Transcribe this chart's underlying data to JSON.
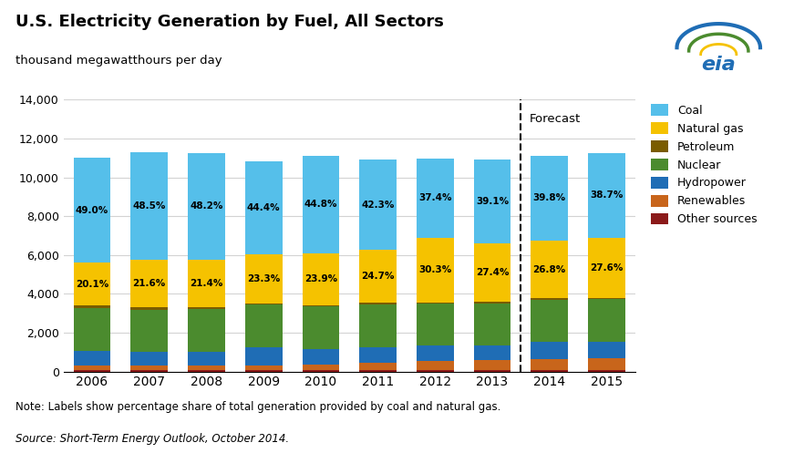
{
  "years": [
    "2006",
    "2007",
    "2008",
    "2009",
    "2010",
    "2011",
    "2012",
    "2013",
    "2014",
    "2015"
  ],
  "coal_pct": [
    "49.0%",
    "48.5%",
    "48.2%",
    "44.4%",
    "44.8%",
    "42.3%",
    "37.4%",
    "39.1%",
    "39.8%",
    "38.7%"
  ],
  "gas_pct": [
    "20.1%",
    "21.6%",
    "21.4%",
    "23.3%",
    "23.9%",
    "24.7%",
    "30.3%",
    "27.4%",
    "26.8%",
    "27.6%"
  ],
  "coal": [
    5390,
    5530,
    5490,
    4780,
    5020,
    4660,
    4100,
    4310,
    4390,
    4360
  ],
  "natural_gas": [
    2210,
    2460,
    2440,
    2510,
    2680,
    2720,
    3320,
    3020,
    2960,
    3110
  ],
  "petroleum": [
    120,
    110,
    100,
    80,
    70,
    70,
    60,
    60,
    60,
    60
  ],
  "nuclear": [
    2210,
    2170,
    2200,
    2190,
    2200,
    2200,
    2170,
    2170,
    2200,
    2200
  ],
  "hydropower": [
    780,
    720,
    730,
    920,
    780,
    810,
    810,
    760,
    870,
    820
  ],
  "renewables": [
    210,
    210,
    230,
    270,
    310,
    380,
    460,
    520,
    580,
    640
  ],
  "other": [
    80,
    80,
    70,
    60,
    60,
    70,
    60,
    60,
    60,
    60
  ],
  "colors": {
    "coal": "#55BFEA",
    "natural_gas": "#F5C200",
    "petroleum": "#7A5C00",
    "nuclear": "#4B8B2E",
    "hydropower": "#1F6DB5",
    "renewables": "#C8651B",
    "other": "#8B1A1A"
  },
  "title": "U.S. Electricity Generation by Fuel, All Sectors",
  "subtitle": "thousand megawatthours per day",
  "ylim": [
    0,
    14000
  ],
  "yticks": [
    0,
    2000,
    4000,
    6000,
    8000,
    10000,
    12000,
    14000
  ],
  "note": "Note: Labels show percentage share of total generation provided by coal and natural gas.",
  "source": "Source: Short-Term Energy Outlook, October 2014.",
  "forecast_after_idx": 7,
  "forecast_label": "Forecast"
}
